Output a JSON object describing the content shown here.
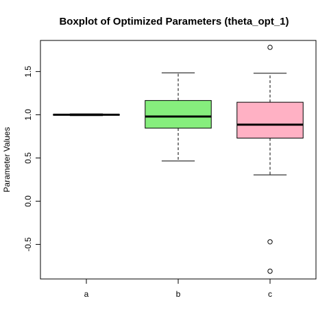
{
  "chart_data": {
    "type": "boxplot",
    "title": "Boxplot of Optimized Parameters (theta_opt_1)",
    "xlabel": "",
    "ylabel": "Parameter Values",
    "categories": [
      "a",
      "b",
      "c"
    ],
    "y_ticks": [
      -0.5,
      0.0,
      0.5,
      1.0,
      1.5
    ],
    "y_tick_labels": [
      "-0.5",
      "0.0",
      "0.5",
      "1.0",
      "1.5"
    ],
    "ylim": [
      -0.9,
      1.86
    ],
    "grid": false,
    "boxes": [
      {
        "category": "a",
        "whisker_low": 0.99,
        "q1": 0.995,
        "median": 1.0,
        "q3": 1.005,
        "whisker_high": 1.01,
        "outliers": [],
        "color": "#ffffff"
      },
      {
        "category": "b",
        "whisker_low": 0.465,
        "q1": 0.845,
        "median": 0.98,
        "q3": 1.165,
        "whisker_high": 1.485,
        "outliers": [],
        "color": "#86ee7d"
      },
      {
        "category": "c",
        "whisker_low": 0.305,
        "q1": 0.73,
        "median": 0.885,
        "q3": 1.145,
        "whisker_high": 1.48,
        "outliers": [
          1.78,
          -0.47,
          -0.81
        ],
        "color": "#ffb1c4"
      }
    ]
  }
}
